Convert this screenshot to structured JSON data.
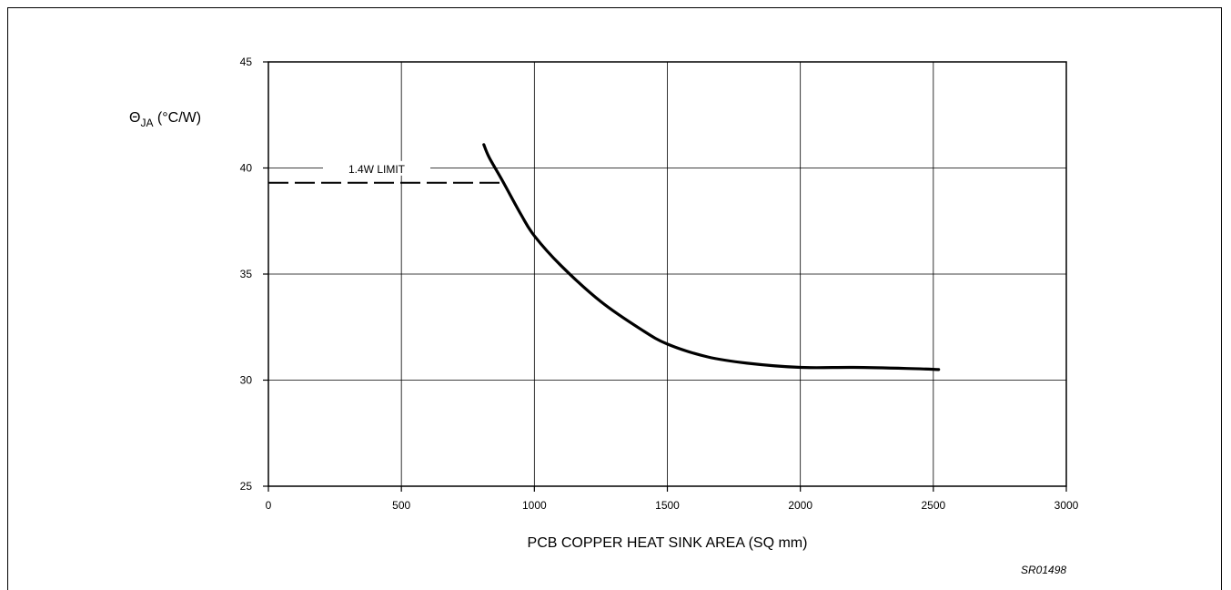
{
  "chart_data": {
    "type": "line",
    "xlabel": "PCB COPPER HEAT SINK AREA (SQ mm)",
    "ylabel_main": "Θ",
    "ylabel_sub": "JA",
    "ylabel_unit": " (°C/W)",
    "xlim": [
      0,
      3000
    ],
    "ylim": [
      25,
      45
    ],
    "x_ticks": [
      0,
      500,
      1000,
      1500,
      2000,
      2500,
      3000
    ],
    "y_ticks": [
      25,
      30,
      35,
      40,
      45
    ],
    "x_tick_labels": [
      "0",
      "500",
      "1000",
      "1500",
      "2000",
      "2500",
      "3000"
    ],
    "y_tick_labels": [
      "25",
      "30",
      "35",
      "40",
      "45"
    ],
    "grid": true,
    "series": [
      {
        "x": [
          810,
          830,
          880,
          950,
          1000,
          1100,
          1250,
          1400,
          1500,
          1650,
          1800,
          2000,
          2200,
          2400,
          2520
        ],
        "y": [
          41.1,
          40.5,
          39.4,
          37.8,
          36.8,
          35.4,
          33.7,
          32.4,
          31.7,
          31.1,
          30.8,
          30.6,
          30.6,
          30.55,
          30.5
        ]
      }
    ],
    "limit_line": {
      "label": "1.4W LIMIT",
      "y": 39.3,
      "x_start": 0,
      "x_end": 880
    }
  },
  "figure_id": "SR01498"
}
